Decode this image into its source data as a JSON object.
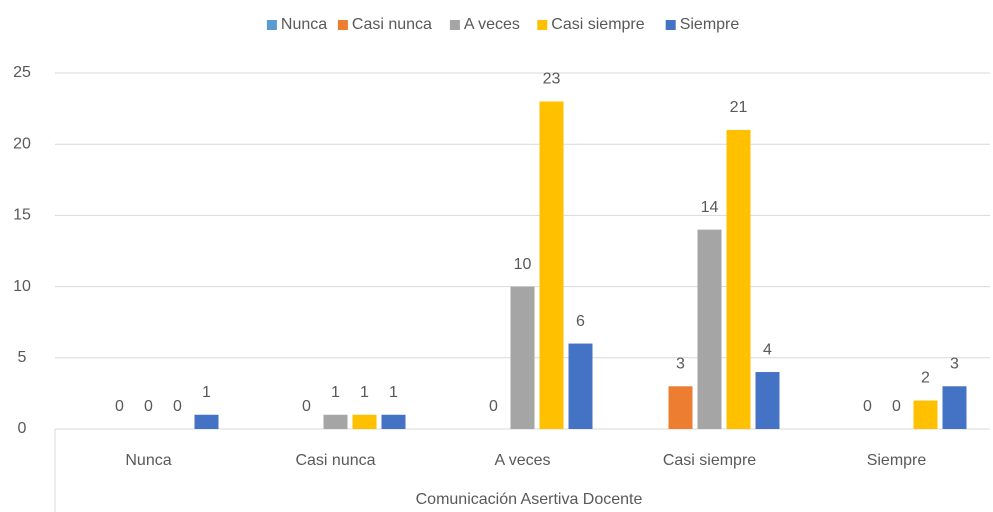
{
  "chart_data": {
    "type": "bar",
    "x_label": "Comunicación Asertiva Docente",
    "categories": [
      "Nunca",
      "Casi nunca",
      "A veces",
      "Casi siempre",
      "Siempre"
    ],
    "series": [
      {
        "name": "Nunca",
        "color": "#5b9bd5",
        "values": [
          null,
          null,
          null,
          null,
          null
        ]
      },
      {
        "name": "Casi nunca",
        "color": "#ed7d31",
        "values": [
          0,
          0,
          0,
          3,
          0
        ]
      },
      {
        "name": "A veces",
        "color": "#a5a5a5",
        "values": [
          0,
          1,
          10,
          14,
          0
        ]
      },
      {
        "name": "Casi siempre",
        "color": "#ffc000",
        "values": [
          0,
          1,
          23,
          21,
          2
        ]
      },
      {
        "name": "Siempre",
        "color": "#4472c4",
        "values": [
          1,
          1,
          6,
          4,
          3
        ]
      }
    ],
    "ylim": [
      0,
      25
    ],
    "yticks": [
      0,
      5,
      10,
      15,
      20,
      25
    ],
    "grid": true,
    "legend": "top"
  }
}
